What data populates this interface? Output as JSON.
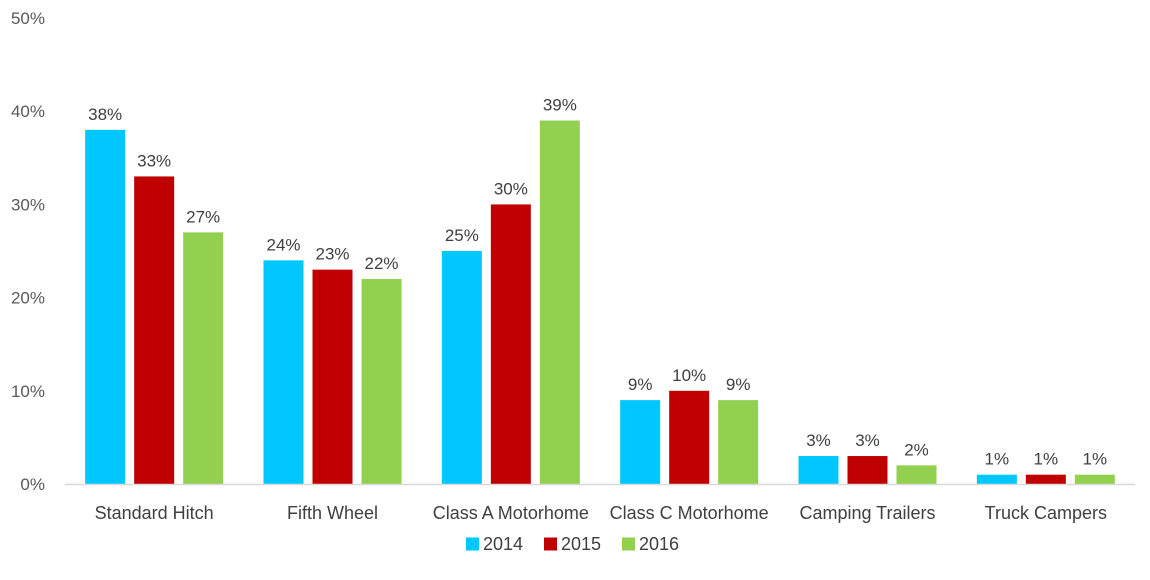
{
  "chart_data": {
    "type": "bar",
    "categories": [
      "Standard Hitch",
      "Fifth Wheel",
      "Class A Motorhome",
      "Class C Motorhome",
      "Camping Trailers",
      "Truck Campers"
    ],
    "series": [
      {
        "name": "2014",
        "color": "#00C8FF",
        "values": [
          38,
          24,
          25,
          9,
          3,
          1
        ]
      },
      {
        "name": "2015",
        "color": "#C00000",
        "values": [
          33,
          23,
          30,
          10,
          3,
          1
        ]
      },
      {
        "name": "2016",
        "color": "#92D050",
        "values": [
          27,
          22,
          39,
          9,
          2,
          1
        ]
      }
    ],
    "data_labels": [
      [
        "38%",
        "24%",
        "25%",
        "9%",
        "3%",
        "1%"
      ],
      [
        "33%",
        "23%",
        "30%",
        "10%",
        "3%",
        "1%"
      ],
      [
        "27%",
        "22%",
        "39%",
        "9%",
        "2%",
        "1%"
      ]
    ],
    "y_ticks": [
      {
        "value": 0,
        "label": "0%"
      },
      {
        "value": 10,
        "label": "10%"
      },
      {
        "value": 20,
        "label": "20%"
      },
      {
        "value": 30,
        "label": "30%"
      },
      {
        "value": 40,
        "label": "40%"
      },
      {
        "value": 50,
        "label": "50%"
      }
    ],
    "ylim": [
      0,
      50
    ],
    "grid": false,
    "legend_position": "bottom-center",
    "axis_color": "#D9D9D9",
    "text_color": "#404040"
  }
}
